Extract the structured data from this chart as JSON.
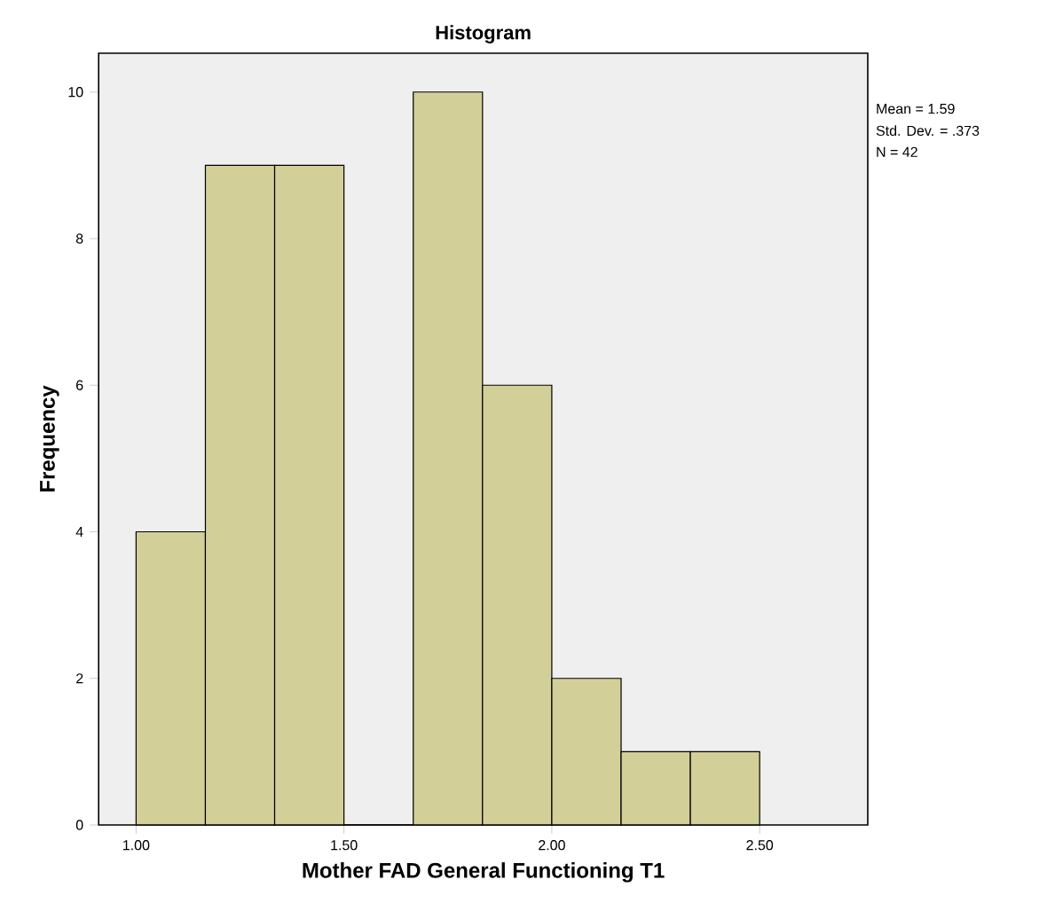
{
  "chart_data": {
    "type": "histogram",
    "title": "Histogram",
    "xlabel": "Mother FAD General Functioning T1",
    "ylabel": "Frequency",
    "bins": [
      1.0,
      1.1667,
      1.3333,
      1.5,
      1.6667,
      1.8333,
      2.0,
      2.1667,
      2.3333,
      2.5
    ],
    "values": [
      4,
      9,
      9,
      0,
      10,
      6,
      2,
      1,
      1
    ],
    "color": "#d3cf98",
    "xlim": [
      0.91,
      2.76
    ],
    "ylim": [
      0,
      10.53
    ],
    "xticks": [
      {
        "value": 1.0,
        "label": "1.00"
      },
      {
        "value": 1.5,
        "label": "1.50"
      },
      {
        "value": 2.0,
        "label": "2.00"
      },
      {
        "value": 2.5,
        "label": "2.50"
      }
    ],
    "yticks": [
      0,
      2,
      4,
      6,
      8,
      10
    ],
    "annotations": [
      "Mean = 1.59",
      "Std. Dev. = .373",
      "N = 42"
    ]
  }
}
